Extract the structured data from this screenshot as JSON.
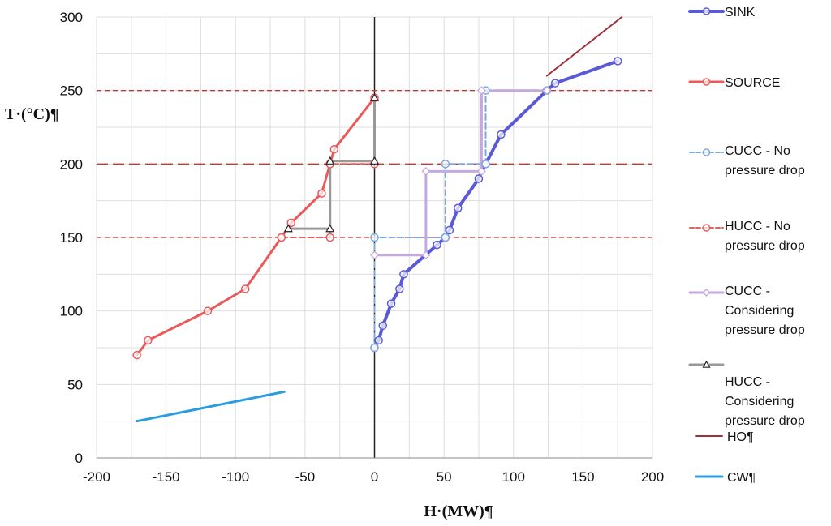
{
  "chart_data": {
    "type": "line",
    "xlabel": "H·(MW)¶",
    "ylabel": "T·(°C)¶",
    "xlim": [
      -200,
      200
    ],
    "ylim": [
      0,
      300
    ],
    "xticks": [
      -200,
      -150,
      -100,
      -50,
      0,
      50,
      100,
      150,
      200
    ],
    "yticks": [
      0,
      50,
      100,
      150,
      200,
      250,
      300
    ],
    "grid": true,
    "legend_position": "right",
    "series": [
      {
        "name": "SINK",
        "color": "#5a5ad8",
        "style": "solid",
        "width": 4,
        "marker": "circle",
        "markers": true,
        "points": [
          [
            0,
            75
          ],
          [
            3,
            80
          ],
          [
            6,
            90
          ],
          [
            12,
            105
          ],
          [
            18,
            115
          ],
          [
            21,
            125
          ],
          [
            45,
            145
          ],
          [
            51,
            150
          ],
          [
            54,
            155
          ],
          [
            60,
            170
          ],
          [
            75,
            190
          ],
          [
            80,
            200
          ],
          [
            91,
            220
          ],
          [
            124,
            250
          ],
          [
            130,
            255
          ],
          [
            175,
            270
          ]
        ]
      },
      {
        "name": "SOURCE",
        "color": "#ea5a5a",
        "style": "solid",
        "width": 3,
        "marker": "circle",
        "markers": true,
        "points": [
          [
            -171,
            70
          ],
          [
            -163,
            80
          ],
          [
            -120,
            100
          ],
          [
            -93,
            115
          ],
          [
            -67,
            150
          ],
          [
            -60,
            160
          ],
          [
            -38,
            180
          ],
          [
            -32,
            200
          ],
          [
            -29,
            210
          ],
          [
            0,
            245
          ]
        ]
      },
      {
        "name": "CUCC - No pressure drop",
        "color": "#7fa8dc",
        "style": "dashed",
        "width": 2,
        "marker": "circle",
        "markers": true,
        "points": [
          [
            0,
            75
          ],
          [
            0,
            150
          ],
          [
            51,
            150
          ],
          [
            51,
            200
          ],
          [
            80,
            200
          ],
          [
            80,
            250
          ],
          [
            124,
            250
          ]
        ]
      },
      {
        "name": "HUCC - No pressure drop",
        "color": "#e06060",
        "style": "dashed",
        "width": 2,
        "marker": "circle",
        "markers": true,
        "points": [
          [
            -67,
            150
          ],
          [
            -32,
            150
          ],
          [
            -32,
            200
          ],
          [
            0,
            200
          ],
          [
            0,
            245
          ]
        ]
      },
      {
        "name": "CUCC - Considering pressure drop",
        "color": "#c6a8e0",
        "style": "solid",
        "width": 3,
        "marker": "diamond",
        "markers": true,
        "points": [
          [
            0,
            138
          ],
          [
            37,
            138
          ],
          [
            37,
            195
          ],
          [
            77,
            195
          ],
          [
            77,
            250
          ],
          [
            124,
            250
          ]
        ]
      },
      {
        "name": "HUCC - Considering pressure drop",
        "color": "#999999",
        "style": "solid",
        "width": 3,
        "marker": "triangle",
        "markers": true,
        "points": [
          [
            -62,
            156
          ],
          [
            -32,
            156
          ],
          [
            -32,
            202
          ],
          [
            0,
            202
          ],
          [
            0,
            245
          ]
        ]
      },
      {
        "name": "HO¶",
        "color": "#a0303a",
        "style": "solid",
        "width": 2,
        "marker": "none",
        "markers": false,
        "points": [
          [
            124,
            260
          ],
          [
            178,
            300
          ]
        ]
      },
      {
        "name": "CW¶",
        "color": "#2a9ce0",
        "style": "solid",
        "width": 3,
        "marker": "none",
        "markers": false,
        "points": [
          [
            -171,
            25
          ],
          [
            -65,
            45
          ]
        ]
      }
    ],
    "reference_lines": [
      {
        "y": 250,
        "color": "#cc3333",
        "style": "dashed"
      },
      {
        "y": 200,
        "color": "#cc3333",
        "style": "longdash"
      },
      {
        "y": 150,
        "color": "#cc3333",
        "style": "dashed"
      }
    ]
  }
}
